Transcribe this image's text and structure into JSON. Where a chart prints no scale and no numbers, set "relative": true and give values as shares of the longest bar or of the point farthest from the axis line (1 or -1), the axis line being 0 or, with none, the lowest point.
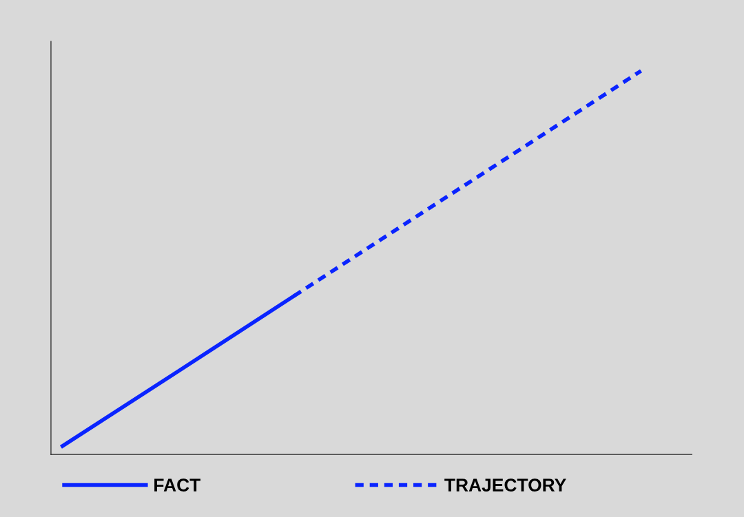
{
  "chart_data": {
    "type": "line",
    "relative": true,
    "categories": [
      null,
      null,
      null,
      null,
      null,
      null
    ],
    "series": [
      {
        "name": "FACT",
        "color": "#0a24ff",
        "line_style": "solid",
        "values": [
          0.022,
          0.217,
          0.413,
          null,
          null,
          null
        ]
      },
      {
        "name": "TRAJECTORY",
        "color": "#0a24ff",
        "line_style": "dashed",
        "values": [
          null,
          null,
          0.413,
          0.609,
          0.804,
          1
        ]
      }
    ],
    "legend": "bottom",
    "grid": false,
    "marker": "none"
  }
}
